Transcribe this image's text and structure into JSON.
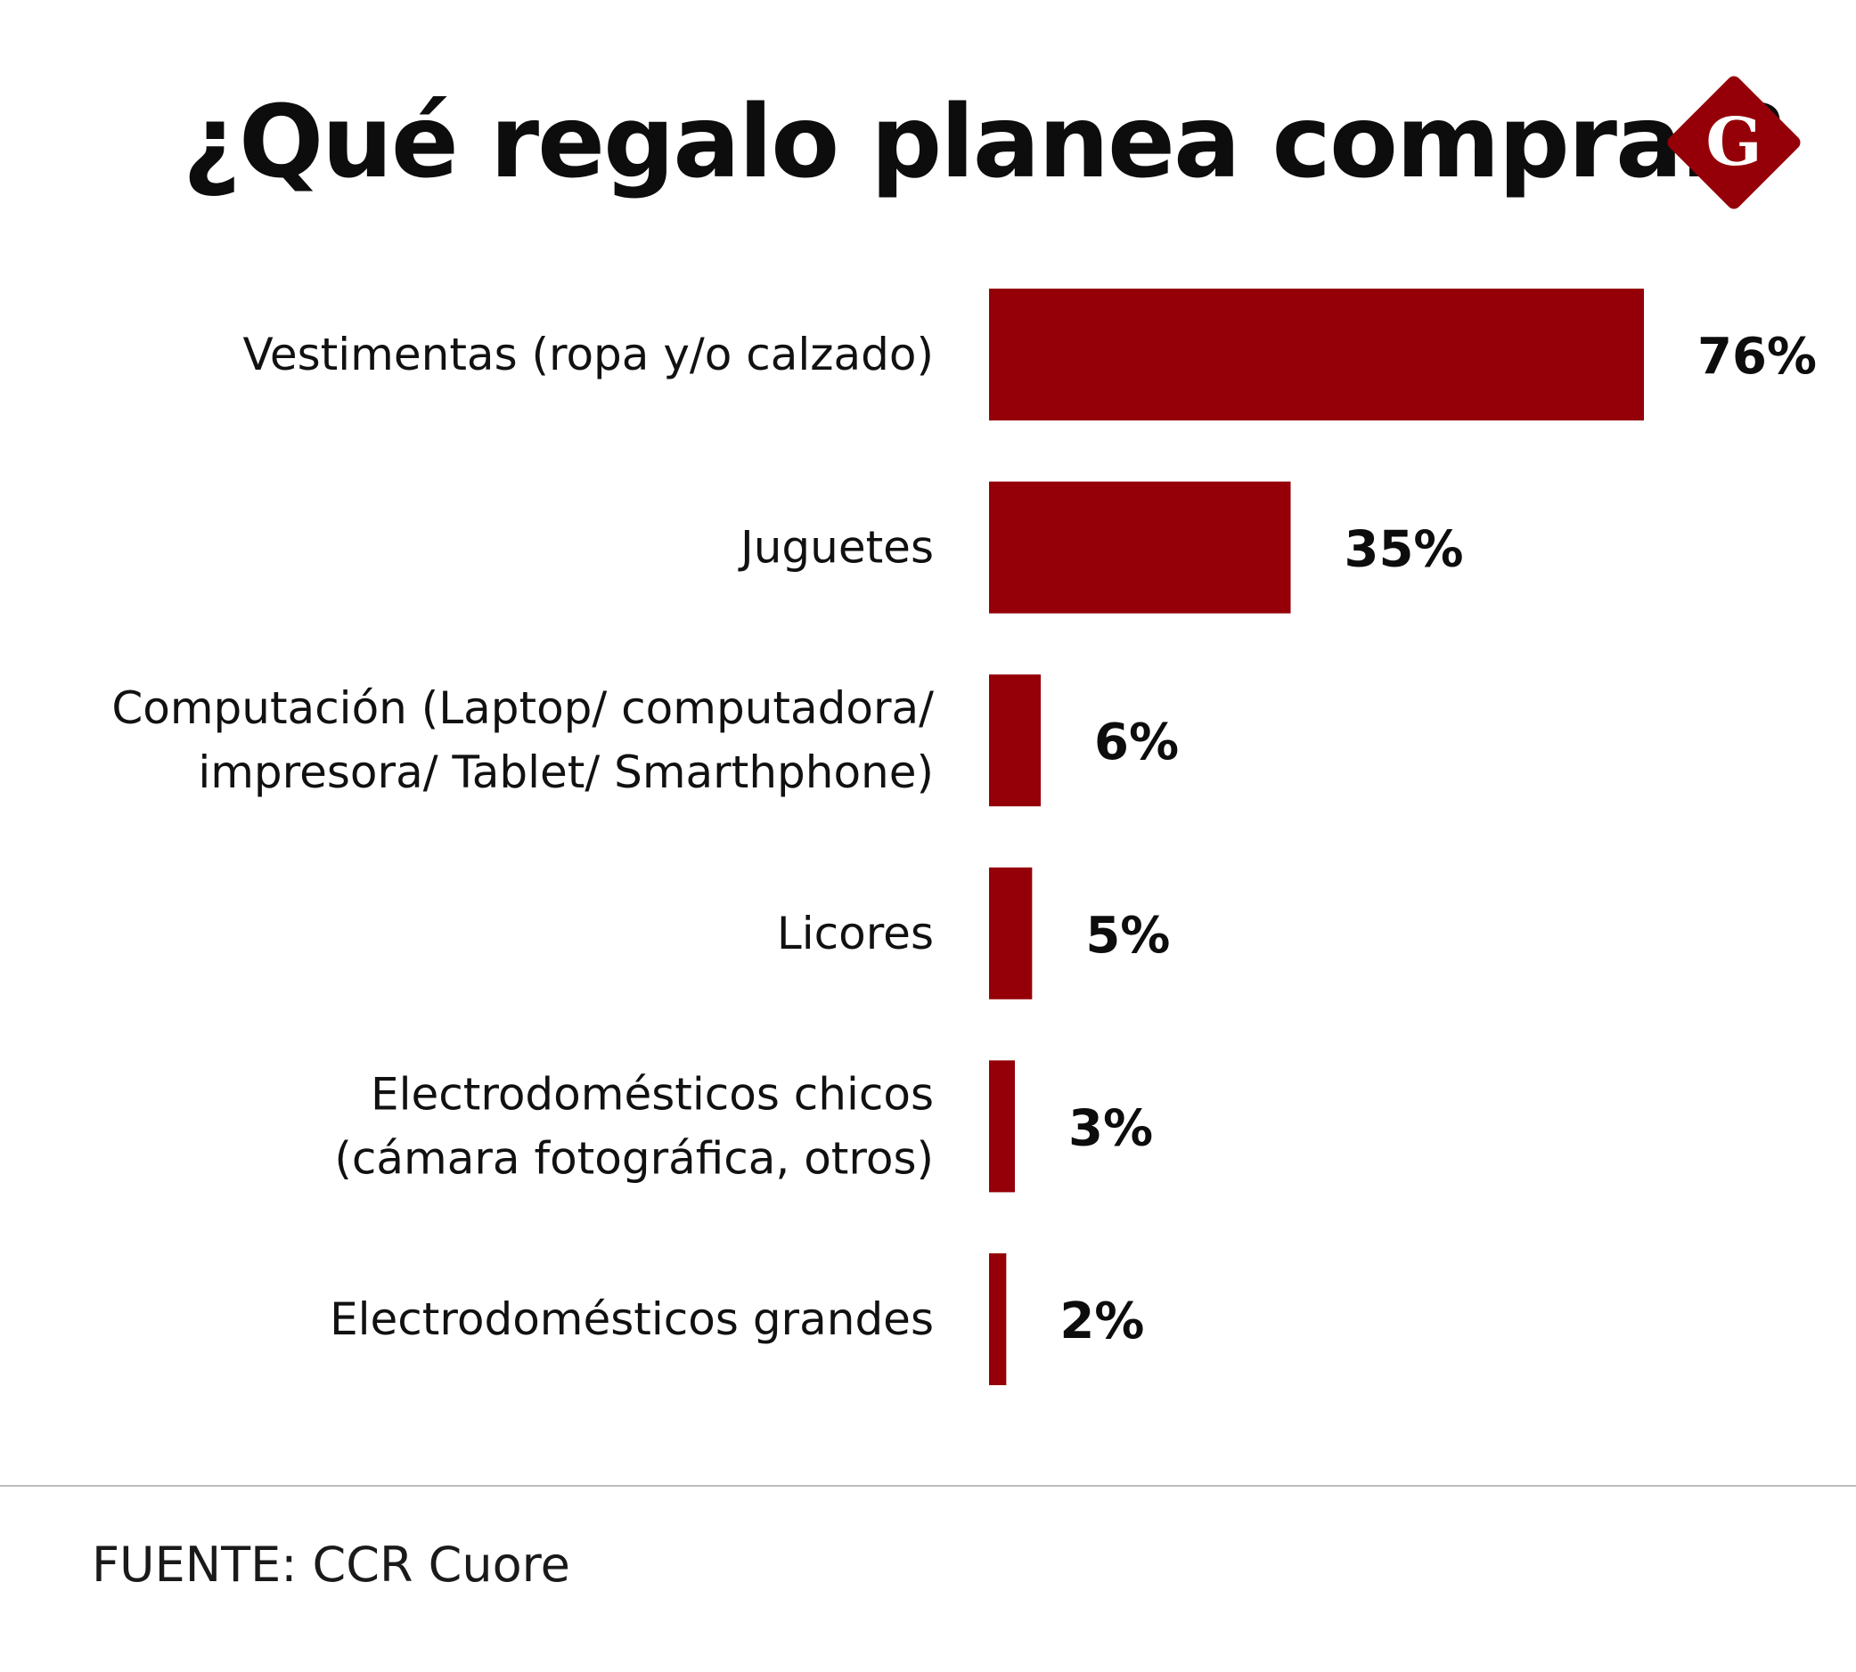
{
  "title": "¿Qué regalo planea comprar?",
  "logo": {
    "letter": "G",
    "color": "#950008",
    "icon": "diamond-g-logo-icon"
  },
  "bar_color": "#950008",
  "source": "FUENTE: CCR Cuore",
  "chart_data": {
    "type": "bar",
    "orientation": "horizontal",
    "title": "¿Qué regalo planea comprar?",
    "xlabel": "",
    "ylabel": "",
    "xlim": [
      0,
      76
    ],
    "grid": false,
    "categories": [
      [
        "Vestimentas (ropa y/o calzado)"
      ],
      [
        "Juguetes"
      ],
      [
        "Computación (Laptop/ computadora/",
        "impresora/ Tablet/ Smarthphone)"
      ],
      [
        "Licores"
      ],
      [
        "Electrodomésticos chicos",
        "(cámara fotográfica, otros)"
      ],
      [
        "Electrodomésticos grandes"
      ]
    ],
    "values": [
      76,
      35,
      6,
      5,
      3,
      2
    ],
    "value_labels": [
      "76%",
      "35%",
      "6%",
      "5%",
      "3%",
      "2%"
    ]
  }
}
